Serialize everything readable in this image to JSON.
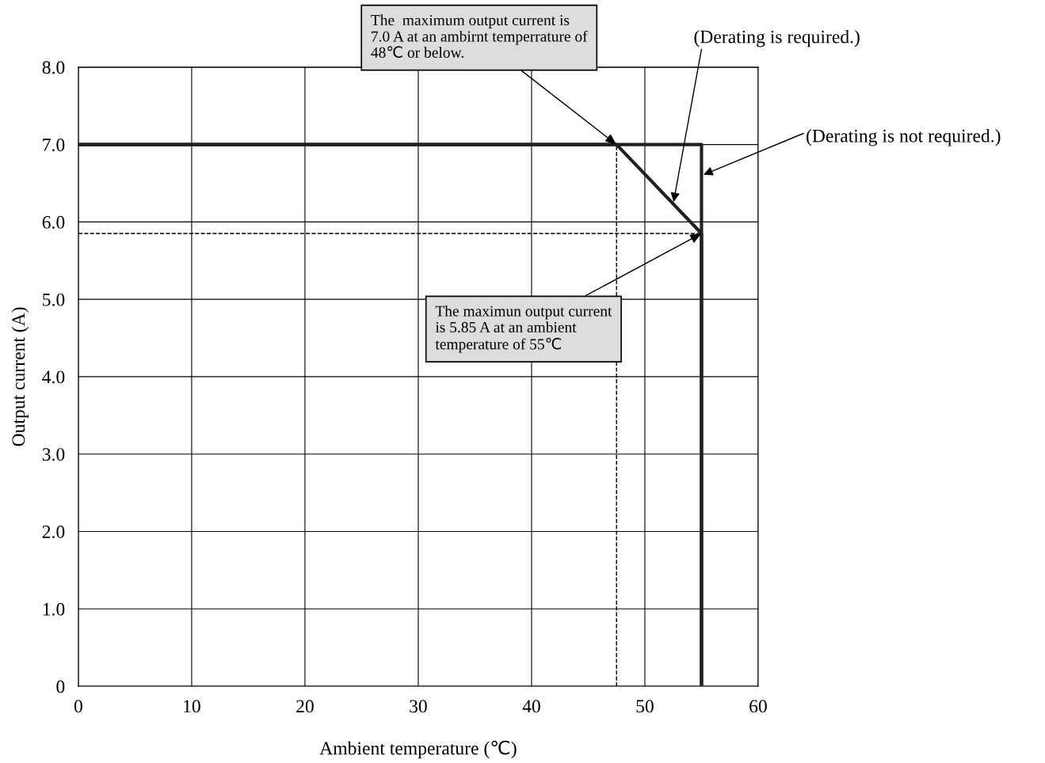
{
  "chart_data": {
    "type": "line",
    "xlabel": "Ambient temperature (℃)",
    "ylabel": "Output current (A)",
    "xlim": [
      0,
      60
    ],
    "ylim": [
      0,
      8
    ],
    "xticks": [
      0,
      10,
      20,
      30,
      40,
      50,
      60
    ],
    "yticks": [
      {
        "value": 0,
        "label": "0"
      },
      {
        "value": 1,
        "label": "1.0"
      },
      {
        "value": 2,
        "label": "2.0"
      },
      {
        "value": 3,
        "label": "3.0"
      },
      {
        "value": 4,
        "label": "4.0"
      },
      {
        "value": 5,
        "label": "5.0"
      },
      {
        "value": 6,
        "label": "6.0"
      },
      {
        "value": 7,
        "label": "7.0"
      },
      {
        "value": 8,
        "label": "8.0"
      }
    ],
    "grid": true,
    "marker": "none",
    "series": [
      {
        "color": "#000000",
        "x": [
          47.5,
          47.5
        ],
        "values": [
          0,
          7.0
        ],
        "line_style": "dashed"
      },
      {
        "color": "#000000",
        "x": [
          0,
          55
        ],
        "values": [
          5.85,
          5.85
        ],
        "line_style": "dashed"
      },
      {
        "color": "#231f20",
        "x": [
          0,
          47.5,
          55,
          55
        ],
        "values": [
          7.0,
          7.0,
          5.85,
          0
        ],
        "line_style": "solid"
      },
      {
        "color": "#231f20",
        "x": [
          0,
          55,
          55
        ],
        "values": [
          7.0,
          7.0,
          0
        ],
        "line_style": "solid"
      }
    ],
    "annotations": [
      {
        "text": "The  maximum output current is\n7.0 A at an ambirnt temperrature of\n48℃ or below.",
        "x": 47.5,
        "y": 7.0
      },
      {
        "text": "The maximun output current\nis 5.85 A at an ambient\ntemperature of 55℃",
        "x": 55,
        "y": 5.85
      },
      {
        "text": "(Derating is required.)",
        "x": 52.5,
        "y": 6.23
      },
      {
        "text": "(Derating is not required.)",
        "x": 55,
        "y": 6.6
      }
    ]
  }
}
